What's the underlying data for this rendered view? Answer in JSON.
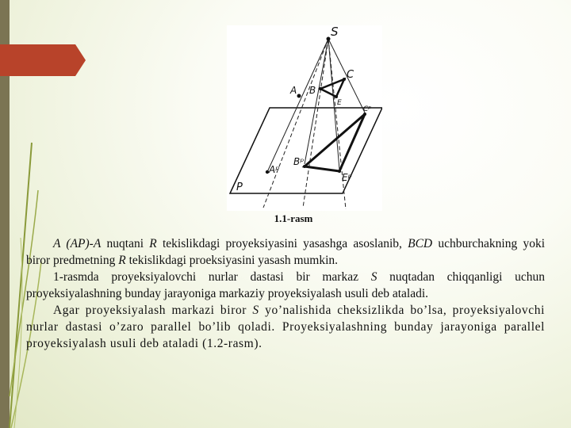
{
  "figure": {
    "labels": {
      "S": "S",
      "A": "A",
      "B": "B",
      "C": "C",
      "E": "E",
      "Ap": "Aᵖ",
      "Bp": "Bᵖ",
      "Cp": "Cᵖ",
      "Ep": "Eᵖ",
      "P": "P"
    },
    "caption": "1.1-rasm"
  },
  "paragraphs": [
    {
      "a_ap_a": "A (AP)-A",
      "t1": " nuqtani ",
      "r1": "R",
      "t2": " tekislikdagi proyeksiyasini yasashga asoslanib, ",
      "bcd": "BCD",
      "t3": " uchburchakning yoki biror predmetning ",
      "r2": "R",
      "t4": " tekislikdagi proeksiyasini yasash mumkin."
    },
    {
      "t1": "1-rasmda proyeksiyalovchi nurlar dastasi bir markaz ",
      "s": "S",
      "t2": " nuqtadan chiqqanligi uchun proyeksiyalashning bunday jarayoniga markaziy proyeksiyalash usuli deb ataladi."
    },
    {
      "t1": "Agar proyeksiyalash markazi biror ",
      "s": "S",
      "t2": " yo’nalishida cheksizlikda bo’lsa, proyeksiyalovchi nurlar dastasi o’zaro parallel bo’lib qoladi. Proyeksiyalashning bunday jarayoniga parallel proyeksiyalash usuli deb ataladi (1.2-rasm)."
    }
  ]
}
